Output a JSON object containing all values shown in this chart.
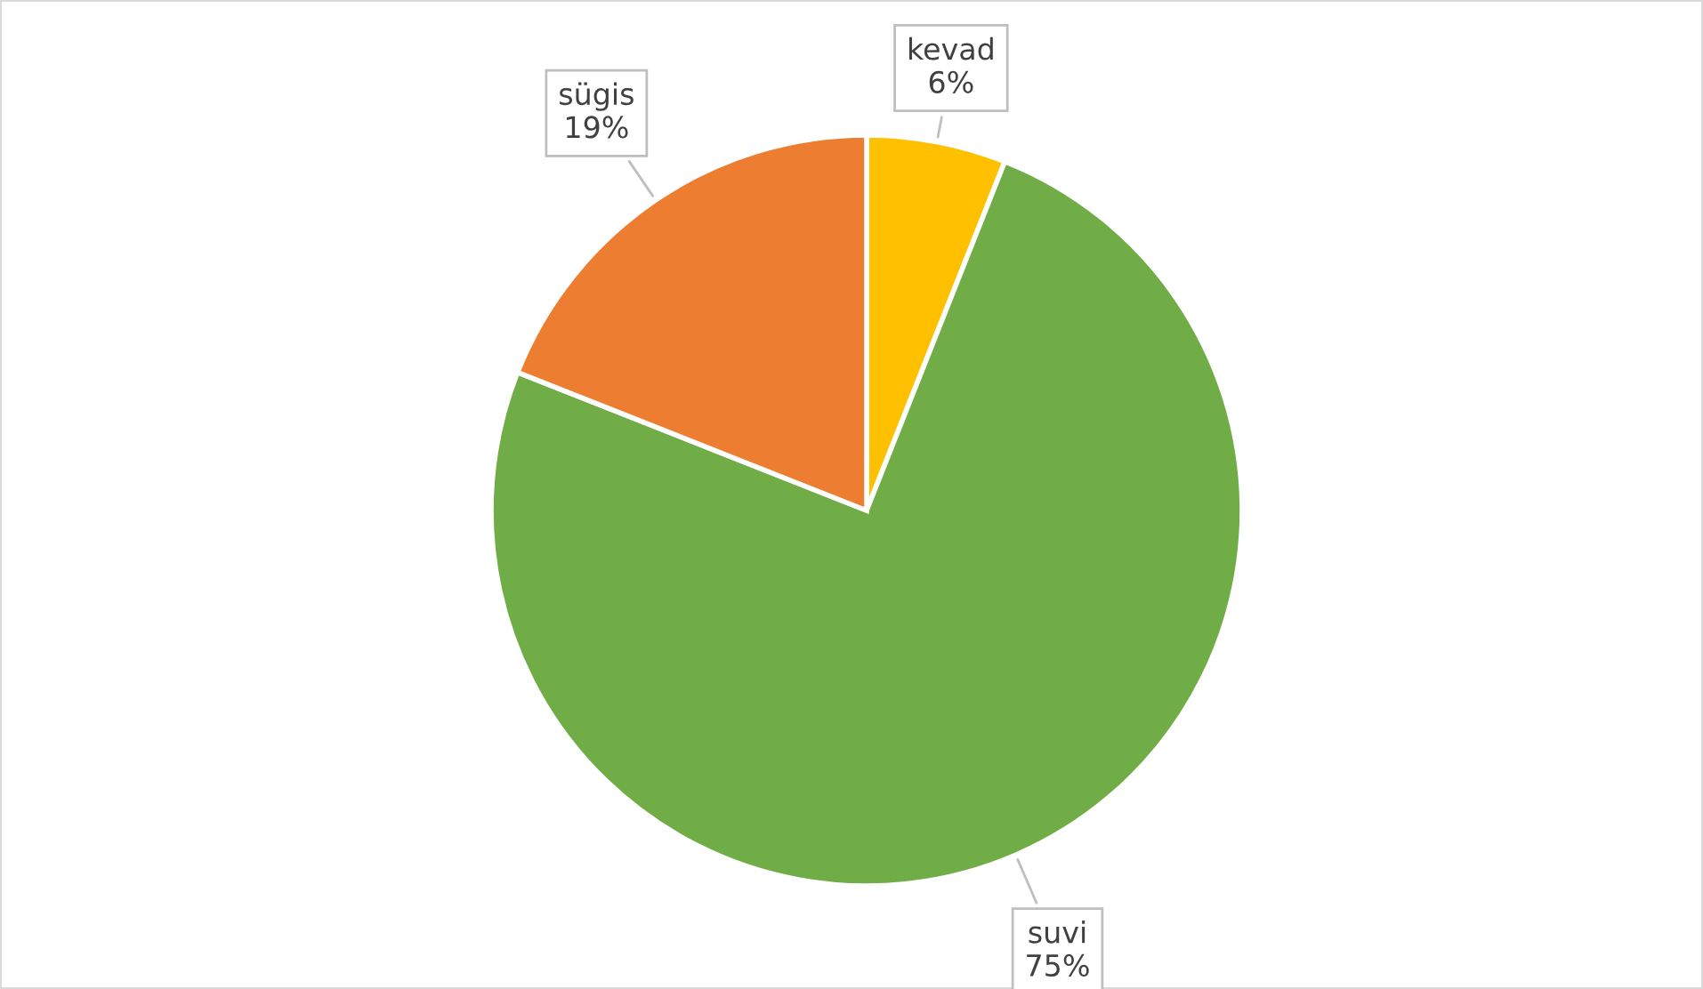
{
  "chart_data": {
    "type": "pie",
    "categories": [
      "kevad",
      "suvi",
      "sügis"
    ],
    "values": [
      6,
      75,
      19
    ],
    "colors": [
      "#ffc000",
      "#70ad47",
      "#ed7d31"
    ],
    "value_labels": [
      "6%",
      "75%",
      "19%"
    ],
    "legend": false
  }
}
